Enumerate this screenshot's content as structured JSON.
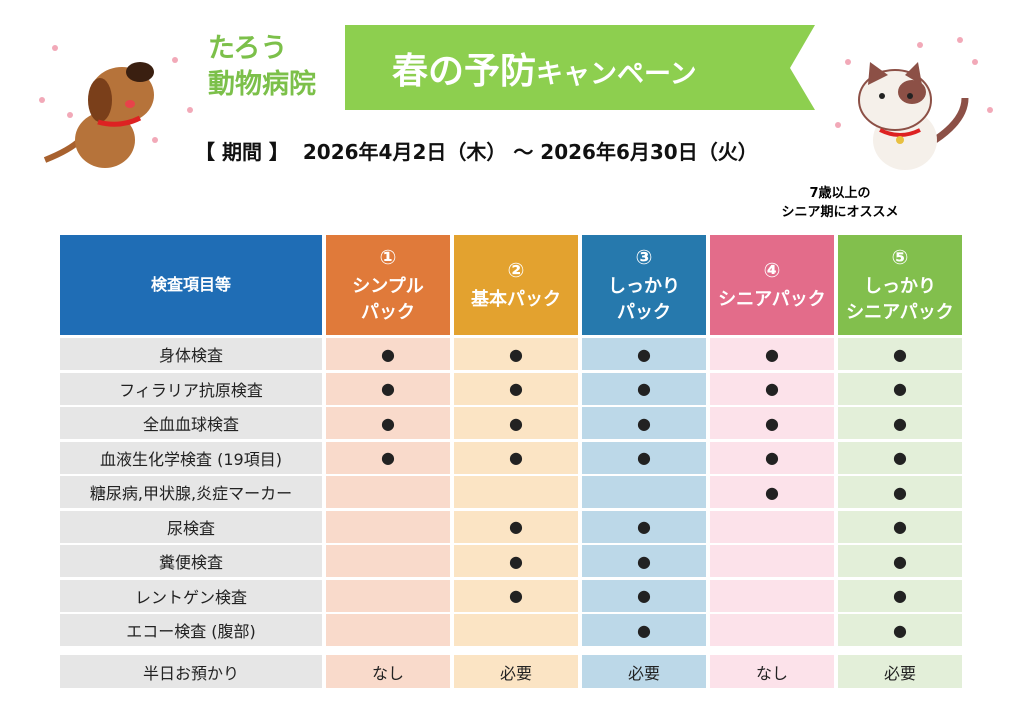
{
  "header": {
    "clinic": [
      "たろう",
      "動物病院"
    ],
    "title": "春の予防",
    "title_suffix": "キャンペーン",
    "period_label": "【 期間 】",
    "period": "2026年4月2日（木） ～ 2026年6月30日（火）",
    "note": [
      "7歳以上の",
      "シニア期にオススメ"
    ]
  },
  "table": {
    "corner": "検査項目等",
    "columns": [
      {
        "number": "①",
        "name": [
          "シンプル",
          "パック"
        ],
        "color": "#e07a3a",
        "light": "#f9dacb"
      },
      {
        "number": "②",
        "name": [
          "基本パック"
        ],
        "color": "#e3a22f",
        "light": "#fbe4c4"
      },
      {
        "number": "③",
        "name": [
          "しっかり",
          "パック"
        ],
        "color": "#2679ad",
        "light": "#bcd8e8"
      },
      {
        "number": "④",
        "name": [
          "シニアパック"
        ],
        "color": "#e36c8a",
        "light": "#fce2ea"
      },
      {
        "number": "⑤",
        "name": [
          "しっかり",
          "シニアパック"
        ],
        "color": "#82bf4d",
        "light": "#e3efd9"
      }
    ],
    "rows": [
      {
        "label": "身体検査",
        "cells": [
          "●",
          "●",
          "●",
          "●",
          "●"
        ]
      },
      {
        "label": "フィラリア抗原検査",
        "cells": [
          "●",
          "●",
          "●",
          "●",
          "●"
        ]
      },
      {
        "label": "全血血球検査",
        "cells": [
          "●",
          "●",
          "●",
          "●",
          "●"
        ]
      },
      {
        "label": "血液生化学検査 (19項目)",
        "cells": [
          "●",
          "●",
          "●",
          "●",
          "●"
        ]
      },
      {
        "label": "糖尿病,甲状腺,炎症マーカー",
        "cells": [
          null,
          null,
          null,
          "●",
          "●"
        ]
      },
      {
        "label": "尿検査",
        "cells": [
          null,
          "●",
          "●",
          null,
          "●"
        ]
      },
      {
        "label": "糞便検査",
        "cells": [
          null,
          "●",
          "●",
          null,
          "●"
        ]
      },
      {
        "label": "レントゲン検査",
        "cells": [
          null,
          "●",
          "●",
          null,
          "●"
        ]
      },
      {
        "label": "エコー検査 (腹部)",
        "cells": [
          null,
          null,
          "●",
          null,
          "●"
        ]
      }
    ],
    "footer": {
      "label": "半日お預かり",
      "cells": [
        "なし",
        "必要",
        "必要",
        "なし",
        "必要"
      ]
    }
  }
}
